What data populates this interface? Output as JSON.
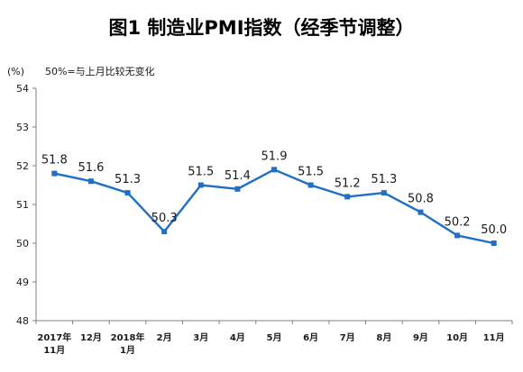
{
  "chart_data": {
    "type": "line",
    "title": "图1  制造业PMI指数（经季节调整）",
    "unit_label": "(%)",
    "note": "50%=与上月比较无变化",
    "categories": [
      [
        "2017年",
        "11月"
      ],
      [
        "12月"
      ],
      [
        "2018年",
        "1月"
      ],
      [
        "2月"
      ],
      [
        "3月"
      ],
      [
        "4月"
      ],
      [
        "5月"
      ],
      [
        "6月"
      ],
      [
        "7月"
      ],
      [
        "8月"
      ],
      [
        "9月"
      ],
      [
        "10月"
      ],
      [
        "11月"
      ]
    ],
    "series": [
      {
        "values": [
          51.8,
          51.6,
          51.3,
          50.3,
          51.5,
          51.4,
          51.9,
          51.5,
          51.2,
          51.3,
          50.8,
          50.2,
          50.0
        ],
        "labels": [
          "51.8",
          "51.6",
          "51.3",
          "50.3",
          "51.5",
          "51.4",
          "51.9",
          "51.5",
          "51.2",
          "51.3",
          "50.8",
          "50.2",
          "50.0"
        ],
        "color": "#1f6fc5"
      }
    ],
    "ylim": [
      48,
      54
    ],
    "yticks": [
      "48",
      "49",
      "50",
      "51",
      "52",
      "53",
      "54"
    ],
    "grid": false,
    "legend": "none",
    "colors": {
      "line": "#1f6fc5",
      "axis": "#7f7f7f",
      "text": "#1a1a1a",
      "title": "#000000"
    }
  }
}
